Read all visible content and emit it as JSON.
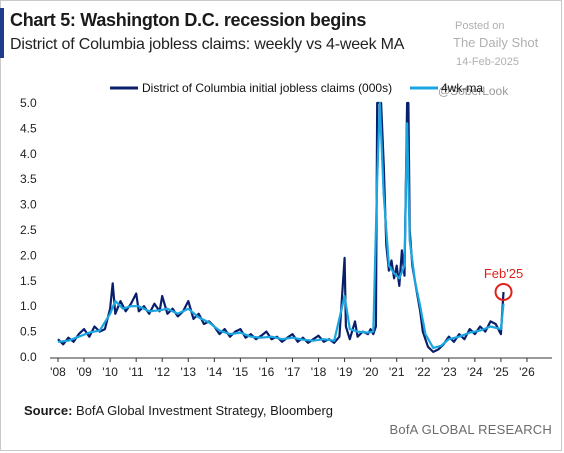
{
  "header": {
    "title": "Chart 5: Washington D.C. recession begins",
    "subtitle": "District of Columbia jobless claims: weekly vs 4-week MA"
  },
  "watermark": {
    "line1": "Posted on",
    "line2": "The Daily Shot",
    "line3": "14-Feb-2025",
    "line4": "@SoberLook"
  },
  "footer": {
    "source_label": "Source:",
    "source_text": " BofA Global Investment Strategy, Bloomberg",
    "brand": "BofA GLOBAL RESEARCH"
  },
  "colors": {
    "weekly": "#0a1f6b",
    "ma": "#1aa6e0",
    "annotation": "#e0201b",
    "axis": "#333333"
  },
  "chart_data": {
    "type": "line",
    "title": "Chart 5: Washington D.C. recession begins",
    "subtitle": "District of Columbia jobless claims: weekly vs 4-week MA",
    "xlabel": "",
    "ylabel": "",
    "x_ticks": [
      "'08",
      "'09",
      "'10",
      "'11",
      "'12",
      "'13",
      "'14",
      "'15",
      "'16",
      "'17",
      "'18",
      "'19",
      "'20",
      "'21",
      "'22",
      "'23",
      "'24",
      "'25",
      "'26"
    ],
    "y_ticks": [
      "0.0",
      "0.5",
      "1.0",
      "1.5",
      "2.0",
      "2.5",
      "3.0",
      "3.5",
      "4.0",
      "4.5",
      "5.0"
    ],
    "xlim": [
      2008,
      2026.5
    ],
    "ylim": [
      0,
      5.0
    ],
    "grid": false,
    "legend_position": "top",
    "annotation": {
      "label": "Feb'25",
      "x": 2025.1,
      "y": 1.28
    },
    "series": [
      {
        "name": "District of Columbia initial jobless claims (000s)",
        "points": [
          [
            2008.0,
            0.35
          ],
          [
            2008.2,
            0.25
          ],
          [
            2008.4,
            0.38
          ],
          [
            2008.6,
            0.3
          ],
          [
            2008.8,
            0.45
          ],
          [
            2009.0,
            0.55
          ],
          [
            2009.2,
            0.4
          ],
          [
            2009.4,
            0.6
          ],
          [
            2009.6,
            0.5
          ],
          [
            2009.8,
            0.55
          ],
          [
            2010.0,
            0.95
          ],
          [
            2010.1,
            1.45
          ],
          [
            2010.2,
            0.85
          ],
          [
            2010.4,
            1.1
          ],
          [
            2010.6,
            0.9
          ],
          [
            2010.8,
            1.05
          ],
          [
            2011.0,
            1.25
          ],
          [
            2011.1,
            0.9
          ],
          [
            2011.3,
            1.0
          ],
          [
            2011.5,
            0.85
          ],
          [
            2011.7,
            1.05
          ],
          [
            2011.9,
            0.9
          ],
          [
            2012.0,
            1.2
          ],
          [
            2012.2,
            0.85
          ],
          [
            2012.4,
            0.95
          ],
          [
            2012.6,
            0.8
          ],
          [
            2012.8,
            0.9
          ],
          [
            2013.0,
            1.1
          ],
          [
            2013.2,
            0.75
          ],
          [
            2013.4,
            0.85
          ],
          [
            2013.6,
            0.65
          ],
          [
            2013.8,
            0.7
          ],
          [
            2014.0,
            0.6
          ],
          [
            2014.2,
            0.45
          ],
          [
            2014.4,
            0.55
          ],
          [
            2014.6,
            0.4
          ],
          [
            2014.8,
            0.5
          ],
          [
            2015.0,
            0.55
          ],
          [
            2015.2,
            0.38
          ],
          [
            2015.4,
            0.45
          ],
          [
            2015.6,
            0.35
          ],
          [
            2015.8,
            0.42
          ],
          [
            2016.0,
            0.5
          ],
          [
            2016.2,
            0.35
          ],
          [
            2016.4,
            0.4
          ],
          [
            2016.6,
            0.3
          ],
          [
            2016.8,
            0.38
          ],
          [
            2017.0,
            0.45
          ],
          [
            2017.2,
            0.3
          ],
          [
            2017.4,
            0.38
          ],
          [
            2017.6,
            0.28
          ],
          [
            2017.8,
            0.35
          ],
          [
            2018.0,
            0.42
          ],
          [
            2018.2,
            0.3
          ],
          [
            2018.4,
            0.35
          ],
          [
            2018.6,
            0.28
          ],
          [
            2018.8,
            0.4
          ],
          [
            2019.0,
            1.95
          ],
          [
            2019.05,
            0.6
          ],
          [
            2019.2,
            0.35
          ],
          [
            2019.4,
            0.7
          ],
          [
            2019.5,
            0.4
          ],
          [
            2019.7,
            0.5
          ],
          [
            2019.9,
            0.45
          ],
          [
            2020.0,
            0.55
          ],
          [
            2020.1,
            0.45
          ],
          [
            2020.2,
            0.6
          ],
          [
            2020.25,
            5.0
          ],
          [
            2020.4,
            5.0
          ],
          [
            2020.5,
            3.8
          ],
          [
            2020.6,
            2.2
          ],
          [
            2020.7,
            1.7
          ],
          [
            2020.8,
            1.9
          ],
          [
            2020.9,
            1.55
          ],
          [
            2021.0,
            1.8
          ],
          [
            2021.1,
            1.4
          ],
          [
            2021.2,
            2.1
          ],
          [
            2021.3,
            1.6
          ],
          [
            2021.4,
            5.0
          ],
          [
            2021.45,
            5.0
          ],
          [
            2021.5,
            2.5
          ],
          [
            2021.6,
            1.8
          ],
          [
            2021.8,
            1.2
          ],
          [
            2021.9,
            0.9
          ],
          [
            2022.0,
            0.5
          ],
          [
            2022.2,
            0.2
          ],
          [
            2022.4,
            0.1
          ],
          [
            2022.6,
            0.15
          ],
          [
            2022.8,
            0.25
          ],
          [
            2023.0,
            0.4
          ],
          [
            2023.2,
            0.3
          ],
          [
            2023.4,
            0.45
          ],
          [
            2023.6,
            0.35
          ],
          [
            2023.8,
            0.55
          ],
          [
            2024.0,
            0.45
          ],
          [
            2024.2,
            0.6
          ],
          [
            2024.4,
            0.5
          ],
          [
            2024.6,
            0.7
          ],
          [
            2024.8,
            0.65
          ],
          [
            2025.0,
            0.45
          ],
          [
            2025.1,
            1.28
          ]
        ]
      },
      {
        "name": "4wk-ma",
        "points": [
          [
            2008.0,
            0.3
          ],
          [
            2008.4,
            0.32
          ],
          [
            2008.8,
            0.4
          ],
          [
            2009.2,
            0.48
          ],
          [
            2009.6,
            0.52
          ],
          [
            2010.0,
            0.85
          ],
          [
            2010.2,
            1.1
          ],
          [
            2010.5,
            0.95
          ],
          [
            2010.8,
            1.0
          ],
          [
            2011.1,
            1.0
          ],
          [
            2011.5,
            0.9
          ],
          [
            2011.9,
            0.92
          ],
          [
            2012.2,
            0.95
          ],
          [
            2012.6,
            0.85
          ],
          [
            2013.0,
            0.95
          ],
          [
            2013.4,
            0.78
          ],
          [
            2013.8,
            0.68
          ],
          [
            2014.2,
            0.52
          ],
          [
            2014.6,
            0.45
          ],
          [
            2015.0,
            0.48
          ],
          [
            2015.4,
            0.4
          ],
          [
            2015.8,
            0.38
          ],
          [
            2016.2,
            0.4
          ],
          [
            2016.6,
            0.35
          ],
          [
            2017.0,
            0.38
          ],
          [
            2017.4,
            0.34
          ],
          [
            2017.8,
            0.32
          ],
          [
            2018.2,
            0.35
          ],
          [
            2018.6,
            0.32
          ],
          [
            2019.0,
            1.2
          ],
          [
            2019.2,
            0.55
          ],
          [
            2019.5,
            0.5
          ],
          [
            2019.9,
            0.48
          ],
          [
            2020.1,
            0.5
          ],
          [
            2020.25,
            3.5
          ],
          [
            2020.35,
            5.0
          ],
          [
            2020.5,
            3.2
          ],
          [
            2020.7,
            1.8
          ],
          [
            2020.9,
            1.65
          ],
          [
            2021.1,
            1.55
          ],
          [
            2021.3,
            1.8
          ],
          [
            2021.4,
            4.6
          ],
          [
            2021.5,
            2.3
          ],
          [
            2021.7,
            1.5
          ],
          [
            2021.9,
            1.0
          ],
          [
            2022.1,
            0.45
          ],
          [
            2022.4,
            0.18
          ],
          [
            2022.7,
            0.22
          ],
          [
            2023.0,
            0.35
          ],
          [
            2023.4,
            0.4
          ],
          [
            2023.8,
            0.48
          ],
          [
            2024.2,
            0.52
          ],
          [
            2024.6,
            0.6
          ],
          [
            2025.0,
            0.55
          ],
          [
            2025.1,
            1.05
          ]
        ]
      }
    ]
  }
}
